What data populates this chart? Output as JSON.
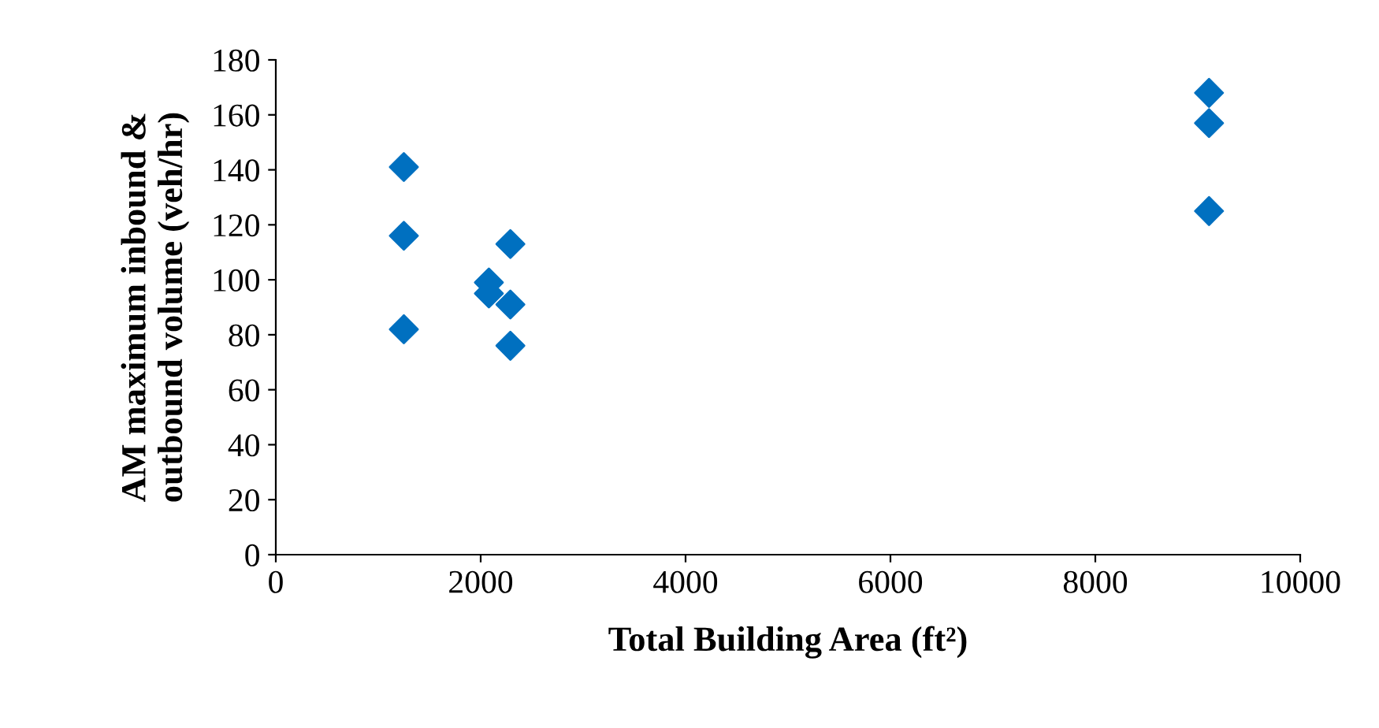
{
  "chart_data": {
    "type": "scatter",
    "xlabel": "Total Building Area (ft²)",
    "ylabel": "AM maximum inbound &\noutbound volume (veh/hr)",
    "series": [
      {
        "color": "#0070c0",
        "x": [
          1250,
          1250,
          1250,
          2080,
          2080,
          2290,
          2290,
          2290,
          9110,
          9110,
          9110
        ],
        "values": [
          141,
          116,
          82,
          99,
          95,
          113,
          91,
          76,
          168,
          157,
          125
        ]
      }
    ],
    "xlim": [
      0,
      10000
    ],
    "xticks": [
      0,
      2000,
      4000,
      6000,
      8000,
      10000
    ],
    "ylim": [
      0,
      180
    ],
    "yticks": [
      0,
      20,
      40,
      60,
      80,
      100,
      120,
      140,
      160,
      180
    ],
    "marker": "diamond",
    "grid": false,
    "legend": false
  }
}
